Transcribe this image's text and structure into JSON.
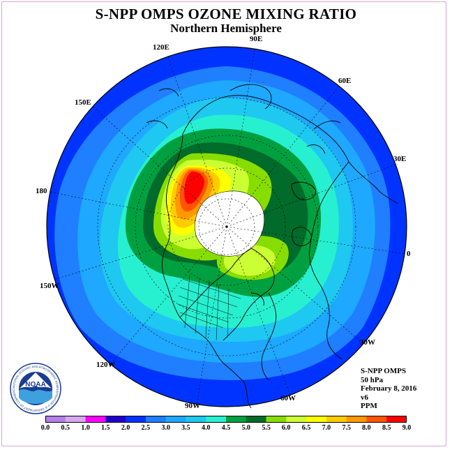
{
  "title": "S-NPP OMPS OZONE MIXING RATIO",
  "subtitle": "Northern Hemisphere",
  "longitude_labels": [
    "90E",
    "60E",
    "30E",
    "0",
    "30W",
    "60W",
    "90W",
    "120W",
    "150W",
    "180",
    "150E",
    "120E"
  ],
  "info": {
    "instrument": "S-NPP OMPS",
    "level": "50 hPa",
    "date": "February 8, 2016",
    "version": "v6",
    "units": "PPM"
  },
  "colorbar": {
    "ticks": [
      "0.0",
      "0.5",
      "1.0",
      "1.5",
      "2.0",
      "2.5",
      "3.0",
      "3.5",
      "4.0",
      "4.5",
      "5.0",
      "5.5",
      "6.0",
      "6.5",
      "7.0",
      "7.5",
      "8.0",
      "8.5",
      "9.0"
    ],
    "colors": [
      "#b57fe8",
      "#d6a8f0",
      "#ff00ff",
      "#2200cc",
      "#0033ff",
      "#1f7fff",
      "#1ea8ff",
      "#1ec8f0",
      "#27f0d0",
      "#00a040",
      "#006b2a",
      "#88dd00",
      "#ccff33",
      "#ffff00",
      "#ffcc00",
      "#ff9900",
      "#ff5500",
      "#ff0000",
      "#8b5a2b"
    ]
  },
  "field_colors": {
    "level_2_0": "#0033ff",
    "level_2_5": "#1f7fff",
    "level_3_0": "#1ea8ff",
    "level_3_5": "#1ec8f0",
    "level_4_0": "#27f0d0",
    "level_4_5": "#00a040",
    "level_5_0": "#006b2a",
    "level_5_5": "#88dd00",
    "level_6_0": "#ccff33",
    "level_6_5": "#ffff00",
    "level_7_0": "#ffcc00",
    "level_7_5": "#ff9900",
    "level_8_0": "#ff5500",
    "level_8_5": "#ff0000",
    "no_data": "#ffffff"
  },
  "logo": {
    "text": "NOAA",
    "ring_text": "NATIONAL OCEANIC AND ATMOSPHERIC ADMINISTRATION U.S. DEPARTMENT OF COMMERCE"
  }
}
